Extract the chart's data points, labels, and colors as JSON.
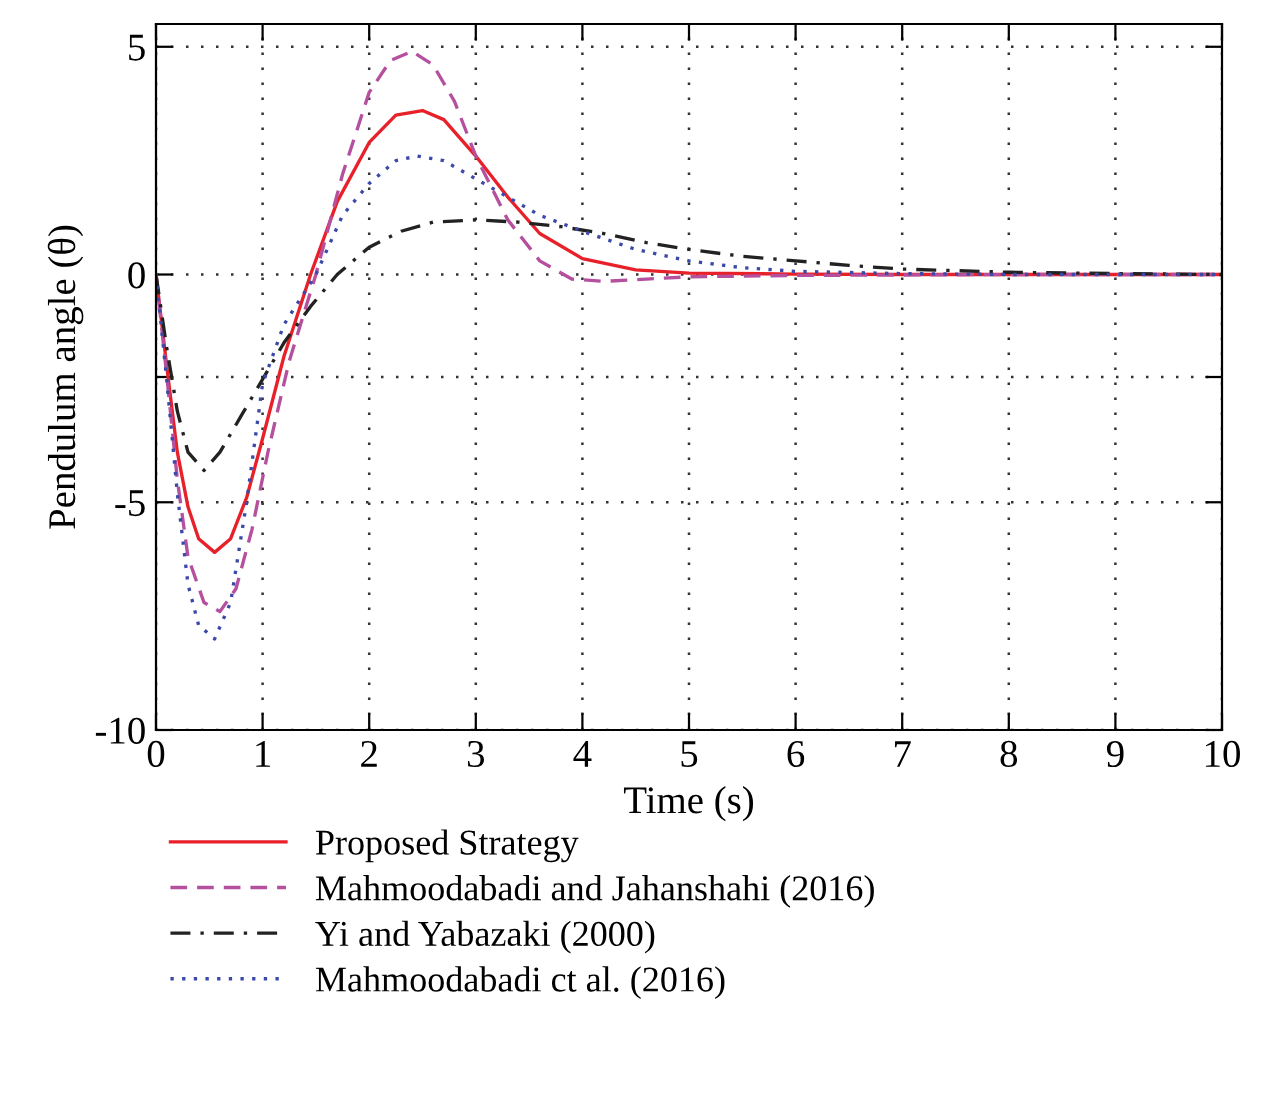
{
  "chart_data": {
    "type": "line",
    "xlabel": "Time (s)",
    "ylabel": "Pendulum angle (θ)",
    "xlim": [
      0,
      10
    ],
    "ylim": [
      -10,
      5.5
    ],
    "xticks": [
      0,
      1,
      2,
      3,
      4,
      5,
      6,
      7,
      8,
      9,
      10
    ],
    "yticks": [
      -10,
      -5,
      {
        "value": -2.25,
        "label": null
      },
      0,
      5
    ],
    "grid": true,
    "legend": "bottom",
    "series": [
      {
        "name": "Proposed Strategy",
        "color": "#e8202a",
        "line_style": "solid",
        "x": [
          0,
          0.1,
          0.2,
          0.3,
          0.4,
          0.55,
          0.7,
          0.85,
          1.0,
          1.2,
          1.45,
          1.7,
          2.0,
          2.25,
          2.5,
          2.7,
          3.0,
          3.3,
          3.6,
          4.0,
          4.5,
          5.0,
          6.0,
          7.0,
          8.0,
          9.0,
          10.0
        ],
        "values": [
          0,
          -2.0,
          -3.9,
          -5.1,
          -5.8,
          -6.1,
          -5.8,
          -4.9,
          -3.6,
          -1.8,
          0,
          1.6,
          2.9,
          3.5,
          3.6,
          3.4,
          2.6,
          1.7,
          0.9,
          0.35,
          0.1,
          0.03,
          0.01,
          0,
          0,
          0,
          0
        ]
      },
      {
        "name": "Mahmoodabadi and Jahanshahi (2016)",
        "color": "#b5509f",
        "line_style": "dashed",
        "x": [
          0,
          0.1,
          0.2,
          0.3,
          0.45,
          0.6,
          0.75,
          0.9,
          1.05,
          1.25,
          1.5,
          1.75,
          2.0,
          2.2,
          2.4,
          2.6,
          2.8,
          3.0,
          3.3,
          3.6,
          3.9,
          4.2,
          4.6,
          5.0,
          6.0,
          8.0,
          10.0
        ],
        "values": [
          0,
          -2.2,
          -4.5,
          -6.2,
          -7.2,
          -7.4,
          -6.9,
          -5.6,
          -3.9,
          -1.9,
          0,
          2.2,
          4.0,
          4.7,
          4.9,
          4.6,
          3.8,
          2.6,
          1.2,
          0.3,
          -0.1,
          -0.15,
          -0.1,
          -0.05,
          -0.02,
          0,
          0
        ]
      },
      {
        "name": "Yi and Yabazaki (2000)",
        "color": "#222222",
        "line_style": "dashdot",
        "x": [
          0,
          0.1,
          0.2,
          0.3,
          0.45,
          0.6,
          0.8,
          1.0,
          1.2,
          1.45,
          1.7,
          2.0,
          2.3,
          2.6,
          3.0,
          3.4,
          3.8,
          4.2,
          4.6,
          5.0,
          5.5,
          6.0,
          6.5,
          7.0,
          8.0,
          9.0,
          10.0
        ],
        "values": [
          0,
          -1.6,
          -3.0,
          -3.9,
          -4.3,
          -3.9,
          -3.1,
          -2.3,
          -1.5,
          -0.7,
          0,
          0.6,
          0.95,
          1.15,
          1.2,
          1.15,
          1.05,
          0.9,
          0.7,
          0.55,
          0.4,
          0.3,
          0.2,
          0.12,
          0.05,
          0.02,
          0
        ]
      },
      {
        "name": "Mahmoodabadi ct al. (2016)",
        "color": "#3b4aa8",
        "line_style": "dotted",
        "x": [
          0,
          0.1,
          0.2,
          0.3,
          0.4,
          0.55,
          0.7,
          0.85,
          1.0,
          1.2,
          1.5,
          1.75,
          2.0,
          2.25,
          2.45,
          2.7,
          3.0,
          3.3,
          3.6,
          4.0,
          4.5,
          5.0,
          5.5,
          6.0,
          7.0,
          8.0,
          10.0
        ],
        "values": [
          0,
          -2.3,
          -4.8,
          -6.8,
          -7.7,
          -8.0,
          -7.2,
          -5.0,
          -2.4,
          -1.1,
          0,
          1.3,
          2.0,
          2.5,
          2.6,
          2.5,
          2.1,
          1.7,
          1.3,
          0.95,
          0.55,
          0.3,
          0.15,
          0.07,
          0.02,
          0,
          0
        ]
      }
    ]
  }
}
